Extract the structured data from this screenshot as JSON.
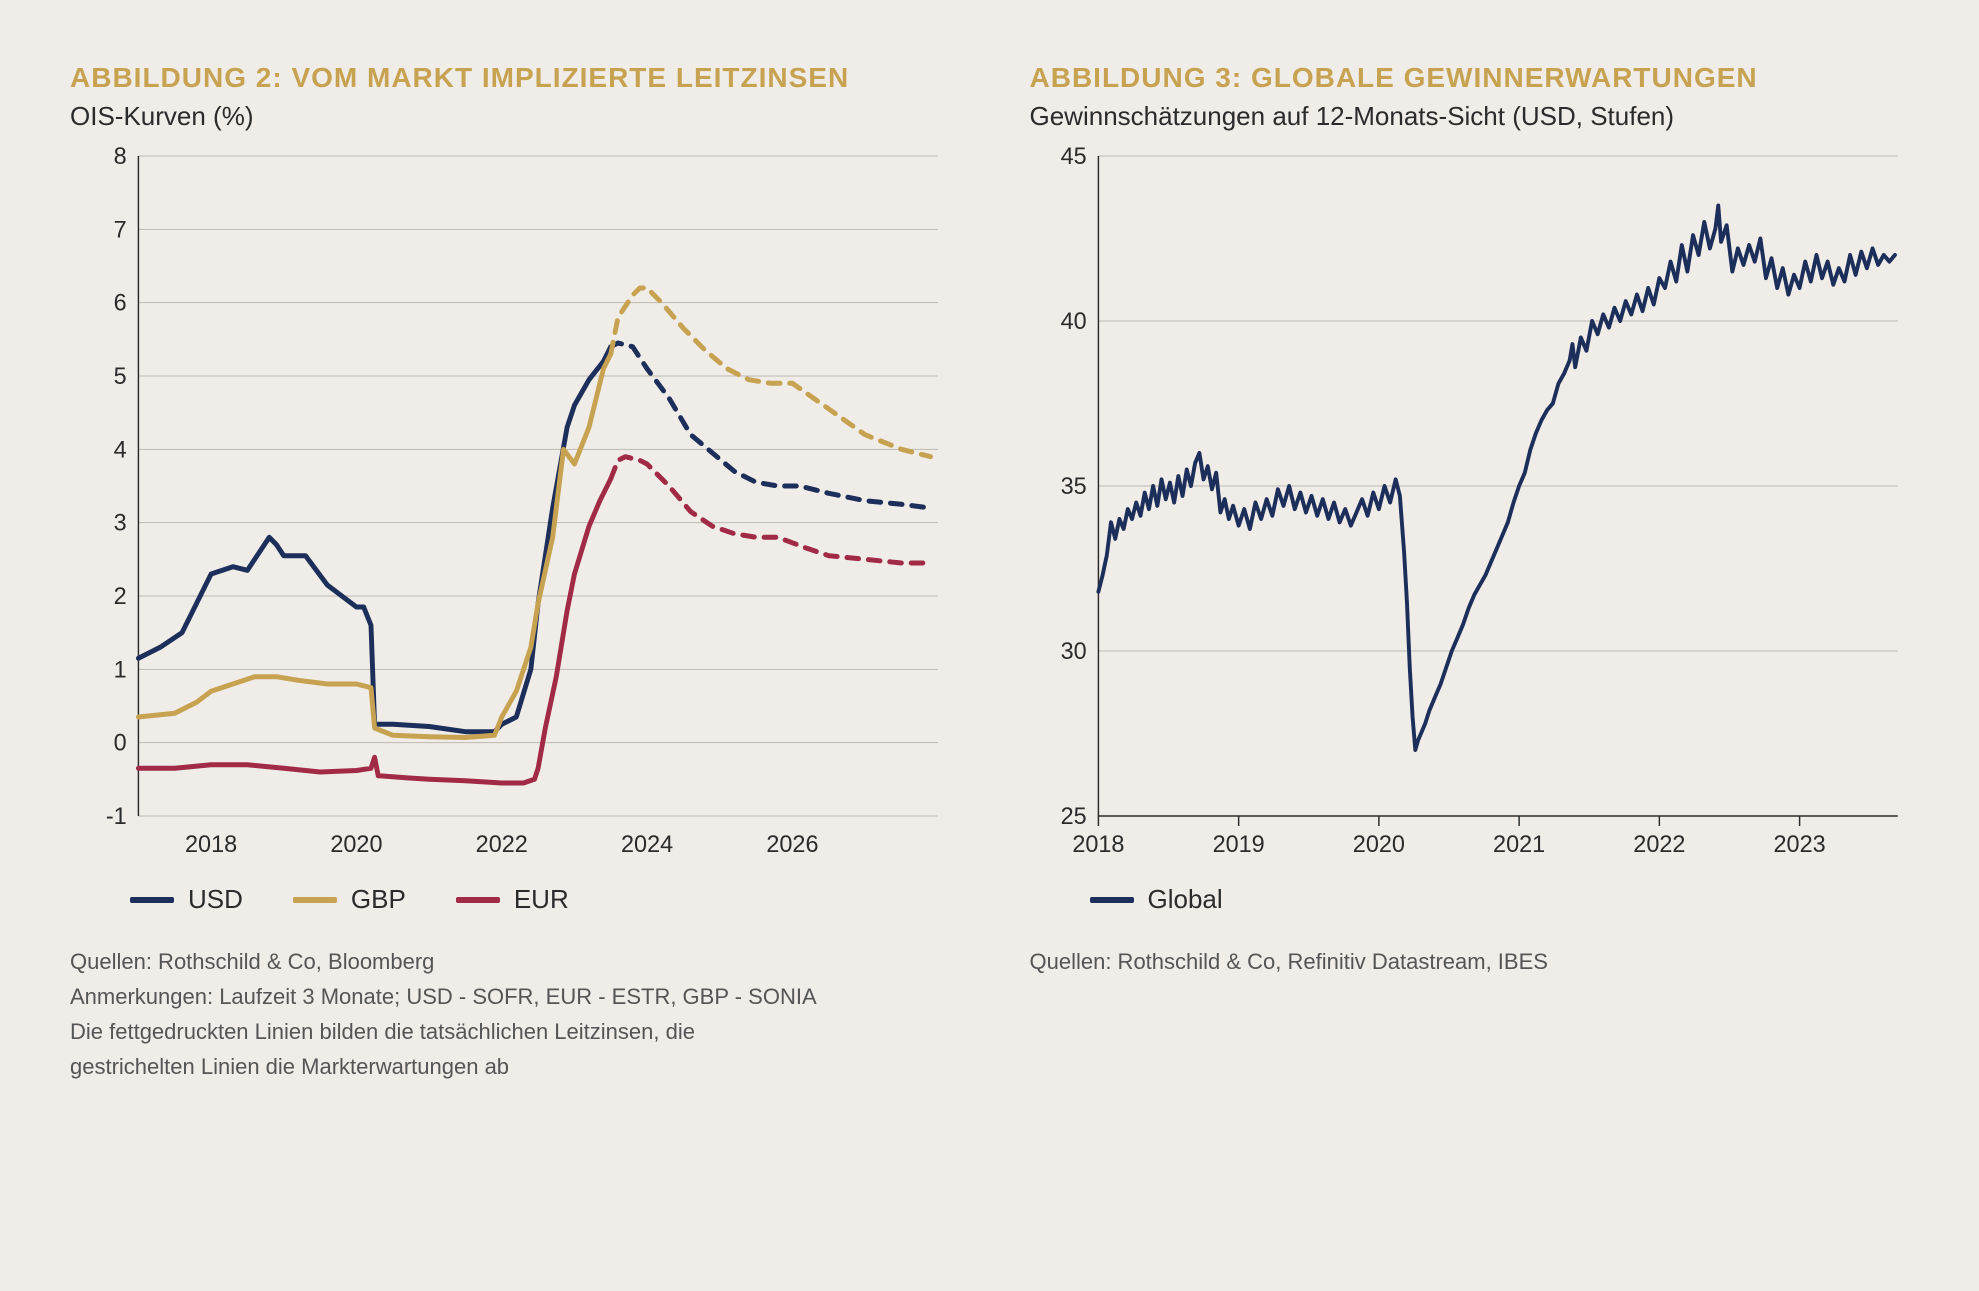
{
  "left": {
    "title": "ABBILDUNG 2: VOM MARKT IMPLIZIERTE LEITZINSEN",
    "subtitle": "OIS-Kurven (%)",
    "title_color": "#c7a251",
    "type": "line",
    "background_color": "#f0ece7",
    "grid_color": "#bdb9b3",
    "axis_color": "#2b2b2b",
    "ylim": [
      -1,
      8
    ],
    "yticks": [
      -1,
      0,
      1,
      2,
      3,
      4,
      5,
      6,
      7,
      8
    ],
    "xlim": [
      2017,
      2028
    ],
    "xticks": [
      2018,
      2020,
      2022,
      2024,
      2026
    ],
    "series": [
      {
        "name": "USD",
        "color": "#1c2e5a",
        "width": 5,
        "solid": [
          [
            2017.0,
            1.15
          ],
          [
            2017.3,
            1.3
          ],
          [
            2017.6,
            1.5
          ],
          [
            2018.0,
            2.3
          ],
          [
            2018.3,
            2.4
          ],
          [
            2018.5,
            2.35
          ],
          [
            2018.8,
            2.8
          ],
          [
            2018.9,
            2.7
          ],
          [
            2019.0,
            2.55
          ],
          [
            2019.3,
            2.55
          ],
          [
            2019.6,
            2.15
          ],
          [
            2020.0,
            1.85
          ],
          [
            2020.1,
            1.85
          ],
          [
            2020.2,
            1.6
          ],
          [
            2020.25,
            0.25
          ],
          [
            2020.5,
            0.25
          ],
          [
            2021.0,
            0.22
          ],
          [
            2021.5,
            0.15
          ],
          [
            2021.9,
            0.15
          ],
          [
            2022.0,
            0.25
          ],
          [
            2022.2,
            0.35
          ],
          [
            2022.4,
            1.0
          ],
          [
            2022.5,
            1.9
          ],
          [
            2022.7,
            3.2
          ],
          [
            2022.9,
            4.3
          ],
          [
            2023.0,
            4.6
          ],
          [
            2023.2,
            4.95
          ],
          [
            2023.4,
            5.2
          ],
          [
            2023.5,
            5.4
          ]
        ],
        "dash": [
          [
            2023.5,
            5.4
          ],
          [
            2023.6,
            5.45
          ],
          [
            2023.8,
            5.4
          ],
          [
            2024.0,
            5.1
          ],
          [
            2024.3,
            4.7
          ],
          [
            2024.6,
            4.2
          ],
          [
            2024.9,
            3.95
          ],
          [
            2025.2,
            3.7
          ],
          [
            2025.5,
            3.55
          ],
          [
            2025.8,
            3.5
          ],
          [
            2026.1,
            3.5
          ],
          [
            2026.5,
            3.4
          ],
          [
            2027.0,
            3.3
          ],
          [
            2027.5,
            3.25
          ],
          [
            2027.9,
            3.2
          ]
        ]
      },
      {
        "name": "GBP",
        "color": "#c7a251",
        "width": 5,
        "solid": [
          [
            2017.0,
            0.35
          ],
          [
            2017.5,
            0.4
          ],
          [
            2017.8,
            0.55
          ],
          [
            2018.0,
            0.7
          ],
          [
            2018.3,
            0.8
          ],
          [
            2018.6,
            0.9
          ],
          [
            2018.9,
            0.9
          ],
          [
            2019.2,
            0.85
          ],
          [
            2019.6,
            0.8
          ],
          [
            2020.0,
            0.8
          ],
          [
            2020.2,
            0.75
          ],
          [
            2020.25,
            0.2
          ],
          [
            2020.5,
            0.1
          ],
          [
            2021.0,
            0.08
          ],
          [
            2021.5,
            0.07
          ],
          [
            2021.9,
            0.1
          ],
          [
            2022.0,
            0.35
          ],
          [
            2022.2,
            0.7
          ],
          [
            2022.4,
            1.3
          ],
          [
            2022.5,
            1.9
          ],
          [
            2022.7,
            2.8
          ],
          [
            2022.85,
            4.0
          ],
          [
            2023.0,
            3.8
          ],
          [
            2023.2,
            4.3
          ],
          [
            2023.4,
            5.1
          ],
          [
            2023.5,
            5.3
          ]
        ],
        "dash": [
          [
            2023.5,
            5.3
          ],
          [
            2023.6,
            5.8
          ],
          [
            2023.8,
            6.1
          ],
          [
            2023.9,
            6.2
          ],
          [
            2024.0,
            6.2
          ],
          [
            2024.2,
            6.0
          ],
          [
            2024.5,
            5.65
          ],
          [
            2024.8,
            5.35
          ],
          [
            2025.1,
            5.1
          ],
          [
            2025.4,
            4.95
          ],
          [
            2025.7,
            4.9
          ],
          [
            2026.0,
            4.9
          ],
          [
            2026.5,
            4.55
          ],
          [
            2027.0,
            4.2
          ],
          [
            2027.5,
            4.0
          ],
          [
            2027.9,
            3.9
          ]
        ]
      },
      {
        "name": "EUR",
        "color": "#a12a46",
        "width": 5,
        "solid": [
          [
            2017.0,
            -0.35
          ],
          [
            2017.5,
            -0.35
          ],
          [
            2018.0,
            -0.3
          ],
          [
            2018.5,
            -0.3
          ],
          [
            2019.0,
            -0.35
          ],
          [
            2019.5,
            -0.4
          ],
          [
            2020.0,
            -0.38
          ],
          [
            2020.2,
            -0.35
          ],
          [
            2020.25,
            -0.2
          ],
          [
            2020.3,
            -0.45
          ],
          [
            2020.7,
            -0.48
          ],
          [
            2021.0,
            -0.5
          ],
          [
            2021.5,
            -0.52
          ],
          [
            2022.0,
            -0.55
          ],
          [
            2022.3,
            -0.55
          ],
          [
            2022.45,
            -0.5
          ],
          [
            2022.5,
            -0.35
          ],
          [
            2022.6,
            0.2
          ],
          [
            2022.75,
            0.9
          ],
          [
            2022.9,
            1.8
          ],
          [
            2023.0,
            2.3
          ],
          [
            2023.2,
            2.95
          ],
          [
            2023.35,
            3.3
          ],
          [
            2023.5,
            3.6
          ]
        ],
        "dash": [
          [
            2023.5,
            3.6
          ],
          [
            2023.6,
            3.85
          ],
          [
            2023.7,
            3.9
          ],
          [
            2023.9,
            3.85
          ],
          [
            2024.0,
            3.8
          ],
          [
            2024.3,
            3.5
          ],
          [
            2024.6,
            3.15
          ],
          [
            2024.9,
            2.95
          ],
          [
            2025.2,
            2.85
          ],
          [
            2025.5,
            2.8
          ],
          [
            2025.8,
            2.8
          ],
          [
            2026.2,
            2.65
          ],
          [
            2026.5,
            2.55
          ],
          [
            2027.0,
            2.5
          ],
          [
            2027.5,
            2.45
          ],
          [
            2027.9,
            2.45
          ]
        ]
      }
    ],
    "legend": [
      "USD",
      "GBP",
      "EUR"
    ],
    "sources_lines": [
      "Quellen: Rothschild & Co, Bloomberg",
      "Anmerkungen: Laufzeit 3 Monate; USD - SOFR, EUR - ESTR, GBP - SONIA",
      "Die fettgedruckten Linien bilden die tatsächlichen Leitzinsen, die",
      "gestrichelten Linien die Markterwartungen ab"
    ]
  },
  "right": {
    "title": "ABBILDUNG 3: GLOBALE GEWINNERWARTUNGEN",
    "subtitle": "Gewinnschätzungen auf 12-Monats-Sicht (USD, Stufen)",
    "title_color": "#c7a251",
    "type": "line",
    "background_color": "#f0ece7",
    "grid_color": "#bdb9b3",
    "axis_color": "#2b2b2b",
    "ylim": [
      25,
      45
    ],
    "yticks": [
      25,
      30,
      35,
      40,
      45
    ],
    "xlim": [
      2018,
      2023.7
    ],
    "xticks": [
      2018,
      2019,
      2020,
      2021,
      2022,
      2023
    ],
    "series": [
      {
        "name": "Global",
        "color": "#1c2e5a",
        "width": 4,
        "points": [
          [
            2018.0,
            31.8
          ],
          [
            2018.03,
            32.3
          ],
          [
            2018.06,
            32.9
          ],
          [
            2018.09,
            33.9
          ],
          [
            2018.12,
            33.4
          ],
          [
            2018.15,
            34.0
          ],
          [
            2018.18,
            33.7
          ],
          [
            2018.21,
            34.3
          ],
          [
            2018.24,
            34.0
          ],
          [
            2018.27,
            34.5
          ],
          [
            2018.3,
            34.1
          ],
          [
            2018.33,
            34.8
          ],
          [
            2018.36,
            34.3
          ],
          [
            2018.39,
            35.0
          ],
          [
            2018.42,
            34.4
          ],
          [
            2018.45,
            35.2
          ],
          [
            2018.48,
            34.6
          ],
          [
            2018.51,
            35.1
          ],
          [
            2018.54,
            34.5
          ],
          [
            2018.57,
            35.3
          ],
          [
            2018.6,
            34.7
          ],
          [
            2018.63,
            35.5
          ],
          [
            2018.66,
            35.0
          ],
          [
            2018.69,
            35.7
          ],
          [
            2018.72,
            36.0
          ],
          [
            2018.75,
            35.2
          ],
          [
            2018.78,
            35.6
          ],
          [
            2018.81,
            34.9
          ],
          [
            2018.84,
            35.4
          ],
          [
            2018.87,
            34.2
          ],
          [
            2018.9,
            34.6
          ],
          [
            2018.93,
            34.0
          ],
          [
            2018.96,
            34.4
          ],
          [
            2019.0,
            33.8
          ],
          [
            2019.04,
            34.3
          ],
          [
            2019.08,
            33.7
          ],
          [
            2019.12,
            34.5
          ],
          [
            2019.16,
            34.0
          ],
          [
            2019.2,
            34.6
          ],
          [
            2019.24,
            34.1
          ],
          [
            2019.28,
            34.9
          ],
          [
            2019.32,
            34.4
          ],
          [
            2019.36,
            35.0
          ],
          [
            2019.4,
            34.3
          ],
          [
            2019.44,
            34.8
          ],
          [
            2019.48,
            34.2
          ],
          [
            2019.52,
            34.7
          ],
          [
            2019.56,
            34.1
          ],
          [
            2019.6,
            34.6
          ],
          [
            2019.64,
            34.0
          ],
          [
            2019.68,
            34.5
          ],
          [
            2019.72,
            33.9
          ],
          [
            2019.76,
            34.3
          ],
          [
            2019.8,
            33.8
          ],
          [
            2019.84,
            34.2
          ],
          [
            2019.88,
            34.6
          ],
          [
            2019.92,
            34.1
          ],
          [
            2019.96,
            34.8
          ],
          [
            2020.0,
            34.3
          ],
          [
            2020.04,
            35.0
          ],
          [
            2020.08,
            34.5
          ],
          [
            2020.12,
            35.2
          ],
          [
            2020.15,
            34.7
          ],
          [
            2020.18,
            33.0
          ],
          [
            2020.2,
            31.5
          ],
          [
            2020.22,
            29.5
          ],
          [
            2020.24,
            28.0
          ],
          [
            2020.26,
            27.0
          ],
          [
            2020.28,
            27.3
          ],
          [
            2020.3,
            27.5
          ],
          [
            2020.33,
            27.8
          ],
          [
            2020.36,
            28.2
          ],
          [
            2020.4,
            28.6
          ],
          [
            2020.44,
            29.0
          ],
          [
            2020.48,
            29.5
          ],
          [
            2020.52,
            30.0
          ],
          [
            2020.56,
            30.4
          ],
          [
            2020.6,
            30.8
          ],
          [
            2020.64,
            31.3
          ],
          [
            2020.68,
            31.7
          ],
          [
            2020.72,
            32.0
          ],
          [
            2020.76,
            32.3
          ],
          [
            2020.8,
            32.7
          ],
          [
            2020.84,
            33.1
          ],
          [
            2020.88,
            33.5
          ],
          [
            2020.92,
            33.9
          ],
          [
            2020.96,
            34.5
          ],
          [
            2021.0,
            35.0
          ],
          [
            2021.04,
            35.4
          ],
          [
            2021.08,
            36.1
          ],
          [
            2021.12,
            36.6
          ],
          [
            2021.16,
            37.0
          ],
          [
            2021.2,
            37.3
          ],
          [
            2021.24,
            37.5
          ],
          [
            2021.28,
            38.1
          ],
          [
            2021.32,
            38.4
          ],
          [
            2021.36,
            38.8
          ],
          [
            2021.38,
            39.3
          ],
          [
            2021.4,
            38.6
          ],
          [
            2021.44,
            39.5
          ],
          [
            2021.48,
            39.1
          ],
          [
            2021.52,
            40.0
          ],
          [
            2021.56,
            39.6
          ],
          [
            2021.6,
            40.2
          ],
          [
            2021.64,
            39.8
          ],
          [
            2021.68,
            40.4
          ],
          [
            2021.72,
            40.0
          ],
          [
            2021.76,
            40.6
          ],
          [
            2021.8,
            40.2
          ],
          [
            2021.84,
            40.8
          ],
          [
            2021.88,
            40.3
          ],
          [
            2021.92,
            41.0
          ],
          [
            2021.96,
            40.5
          ],
          [
            2022.0,
            41.3
          ],
          [
            2022.04,
            41.0
          ],
          [
            2022.08,
            41.8
          ],
          [
            2022.12,
            41.2
          ],
          [
            2022.16,
            42.3
          ],
          [
            2022.2,
            41.5
          ],
          [
            2022.24,
            42.6
          ],
          [
            2022.28,
            42.0
          ],
          [
            2022.32,
            43.0
          ],
          [
            2022.36,
            42.2
          ],
          [
            2022.4,
            42.8
          ],
          [
            2022.42,
            43.5
          ],
          [
            2022.44,
            42.4
          ],
          [
            2022.48,
            42.9
          ],
          [
            2022.52,
            41.5
          ],
          [
            2022.56,
            42.2
          ],
          [
            2022.6,
            41.7
          ],
          [
            2022.64,
            42.3
          ],
          [
            2022.68,
            41.8
          ],
          [
            2022.72,
            42.5
          ],
          [
            2022.76,
            41.3
          ],
          [
            2022.8,
            41.9
          ],
          [
            2022.84,
            41.0
          ],
          [
            2022.88,
            41.6
          ],
          [
            2022.92,
            40.8
          ],
          [
            2022.96,
            41.4
          ],
          [
            2023.0,
            41.0
          ],
          [
            2023.04,
            41.8
          ],
          [
            2023.08,
            41.2
          ],
          [
            2023.12,
            42.0
          ],
          [
            2023.16,
            41.3
          ],
          [
            2023.2,
            41.8
          ],
          [
            2023.24,
            41.1
          ],
          [
            2023.28,
            41.6
          ],
          [
            2023.32,
            41.2
          ],
          [
            2023.36,
            42.0
          ],
          [
            2023.4,
            41.4
          ],
          [
            2023.44,
            42.1
          ],
          [
            2023.48,
            41.6
          ],
          [
            2023.52,
            42.2
          ],
          [
            2023.56,
            41.7
          ],
          [
            2023.6,
            42.0
          ],
          [
            2023.64,
            41.8
          ],
          [
            2023.68,
            42.0
          ]
        ]
      }
    ],
    "legend": [
      "Global"
    ],
    "sources_lines": [
      "Quellen: Rothschild & Co, Refinitiv Datastream, IBES"
    ]
  }
}
